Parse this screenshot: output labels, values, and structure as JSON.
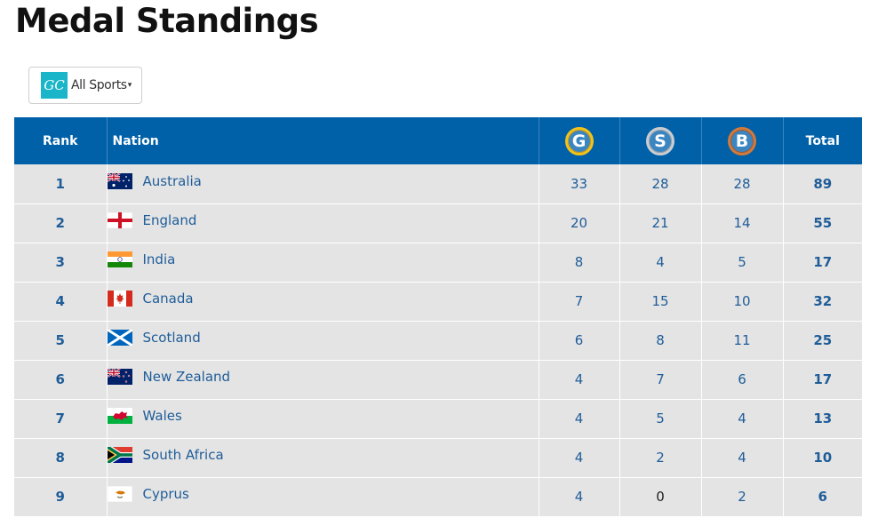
{
  "page": {
    "title": "Medal Standings"
  },
  "filter": {
    "logo_text": "GC",
    "label": "All Sports",
    "caret": "▾"
  },
  "table": {
    "headers": {
      "rank": "Rank",
      "nation": "Nation",
      "gold": "G",
      "silver": "S",
      "bronze": "B",
      "total": "Total"
    },
    "rows": [
      {
        "rank": "1",
        "nation": "Australia",
        "flag": "australia-flag-icon",
        "gold": "33",
        "silver": "28",
        "bronze": "28",
        "total": "89"
      },
      {
        "rank": "2",
        "nation": "England",
        "flag": "england-flag-icon",
        "gold": "20",
        "silver": "21",
        "bronze": "14",
        "total": "55"
      },
      {
        "rank": "3",
        "nation": "India",
        "flag": "india-flag-icon",
        "gold": "8",
        "silver": "4",
        "bronze": "5",
        "total": "17"
      },
      {
        "rank": "4",
        "nation": "Canada",
        "flag": "canada-flag-icon",
        "gold": "7",
        "silver": "15",
        "bronze": "10",
        "total": "32"
      },
      {
        "rank": "5",
        "nation": "Scotland",
        "flag": "scotland-flag-icon",
        "gold": "6",
        "silver": "8",
        "bronze": "11",
        "total": "25"
      },
      {
        "rank": "6",
        "nation": "New Zealand",
        "flag": "new-zealand-flag-icon",
        "gold": "4",
        "silver": "7",
        "bronze": "6",
        "total": "17"
      },
      {
        "rank": "7",
        "nation": "Wales",
        "flag": "wales-flag-icon",
        "gold": "4",
        "silver": "5",
        "bronze": "4",
        "total": "13"
      },
      {
        "rank": "8",
        "nation": "South Africa",
        "flag": "south-africa-flag-icon",
        "gold": "4",
        "silver": "2",
        "bronze": "4",
        "total": "10"
      },
      {
        "rank": "9",
        "nation": "Cyprus",
        "flag": "cyprus-flag-icon",
        "gold": "4",
        "silver": "0",
        "bronze": "2",
        "total": "6"
      }
    ]
  },
  "colors": {
    "header_bg": "#0061a8",
    "row_bg": "#e4e4e4",
    "link_text": "#1f5d99",
    "gold": "#f2c21a",
    "silver": "#c9cdd2",
    "bronze": "#d2793b"
  }
}
